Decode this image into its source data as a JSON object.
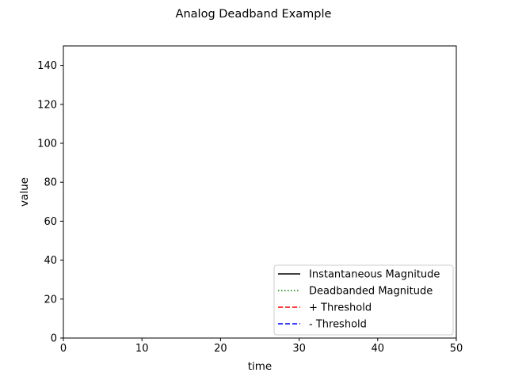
{
  "chart_data": {
    "type": "line",
    "title": "Analog Deadband Example",
    "xlabel": "time",
    "ylabel": "value",
    "xlim": [
      0,
      50
    ],
    "ylim": [
      0,
      150
    ],
    "xticks": [
      0,
      10,
      20,
      30,
      40,
      50
    ],
    "yticks": [
      0,
      20,
      40,
      60,
      80,
      100,
      120,
      140
    ],
    "grid": false,
    "legend_position": "lower-right",
    "series": [
      {
        "name": "Instantaneous Magnitude",
        "color": "#000000",
        "style": "solid",
        "x": [],
        "y": []
      },
      {
        "name": "Deadbanded Magnitude",
        "color": "#008000",
        "style": "dotted",
        "x": [],
        "y": []
      },
      {
        "name": "+ Threshold",
        "color": "#ff0000",
        "style": "dashed",
        "x": [],
        "y": []
      },
      {
        "name": "- Threshold",
        "color": "#0000ff",
        "style": "dashed",
        "x": [],
        "y": []
      }
    ]
  }
}
